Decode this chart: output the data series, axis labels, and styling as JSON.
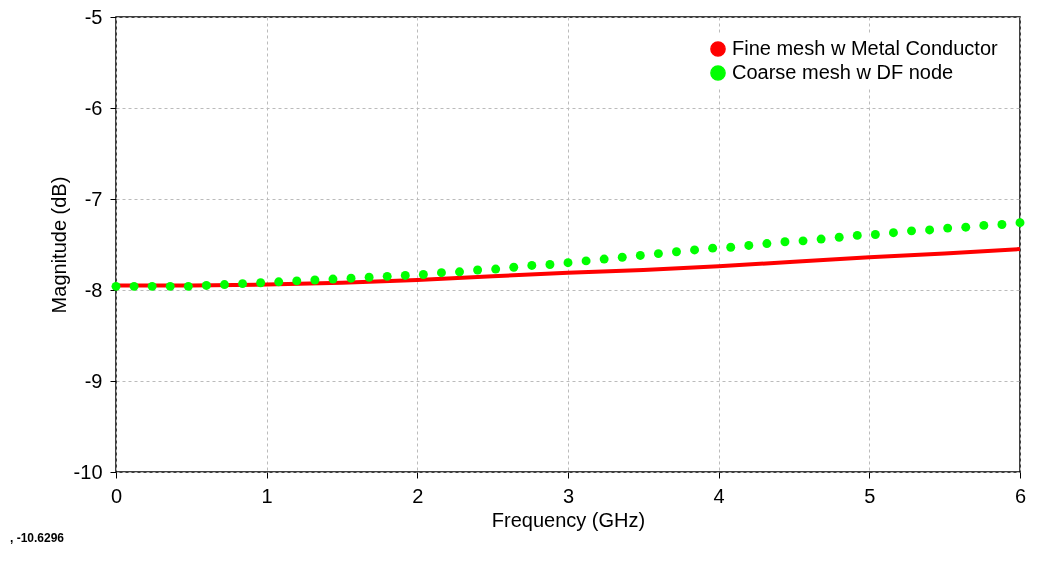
{
  "chart_data": {
    "type": "line",
    "xlabel": "Frequency (GHz)",
    "ylabel": "Magnitude (dB)",
    "xlim": [
      0,
      6
    ],
    "ylim": [
      -10,
      -5
    ],
    "xticks": [
      0,
      1,
      2,
      3,
      4,
      5,
      6
    ],
    "yticks": [
      -10,
      -9,
      -8,
      -7,
      -6,
      -5
    ],
    "grid": true,
    "legend": "top right",
    "annotations": [
      ", -10.6296"
    ],
    "series": [
      {
        "name": "Fine mesh w Metal Conductor",
        "type": "line",
        "color": "#ff0000",
        "line_style": "solid",
        "marker": "none",
        "x": [
          0,
          0.5,
          1,
          1.5,
          2,
          2.5,
          3,
          3.5,
          4,
          4.5,
          5,
          5.5,
          6
        ],
        "values": [
          -7.95,
          -7.95,
          -7.94,
          -7.92,
          -7.89,
          -7.85,
          -7.81,
          -7.78,
          -7.74,
          -7.69,
          -7.64,
          -7.6,
          -7.55
        ]
      },
      {
        "name": "Coarse mesh w DF node",
        "type": "scatter",
        "color": "#00ff00",
        "marker": "circle",
        "x": [
          0,
          0.12,
          0.24,
          0.36,
          0.48,
          0.6,
          0.72,
          0.84,
          0.96,
          1.08,
          1.2,
          1.32,
          1.44,
          1.56,
          1.68,
          1.8,
          1.92,
          2.04,
          2.16,
          2.28,
          2.4,
          2.52,
          2.64,
          2.76,
          2.88,
          3.0,
          3.12,
          3.24,
          3.36,
          3.48,
          3.6,
          3.72,
          3.84,
          3.96,
          4.08,
          4.2,
          4.32,
          4.44,
          4.56,
          4.68,
          4.8,
          4.92,
          5.04,
          5.16,
          5.28,
          5.4,
          5.52,
          5.64,
          5.76,
          5.88,
          6.0
        ],
        "values": [
          -7.96,
          -7.96,
          -7.96,
          -7.96,
          -7.96,
          -7.95,
          -7.94,
          -7.93,
          -7.92,
          -7.91,
          -7.9,
          -7.89,
          -7.88,
          -7.87,
          -7.86,
          -7.85,
          -7.84,
          -7.83,
          -7.81,
          -7.8,
          -7.78,
          -7.77,
          -7.75,
          -7.73,
          -7.72,
          -7.7,
          -7.68,
          -7.66,
          -7.64,
          -7.62,
          -7.6,
          -7.58,
          -7.56,
          -7.54,
          -7.53,
          -7.51,
          -7.49,
          -7.47,
          -7.46,
          -7.44,
          -7.42,
          -7.4,
          -7.39,
          -7.37,
          -7.35,
          -7.34,
          -7.32,
          -7.31,
          -7.29,
          -7.28,
          -7.26
        ]
      }
    ]
  }
}
